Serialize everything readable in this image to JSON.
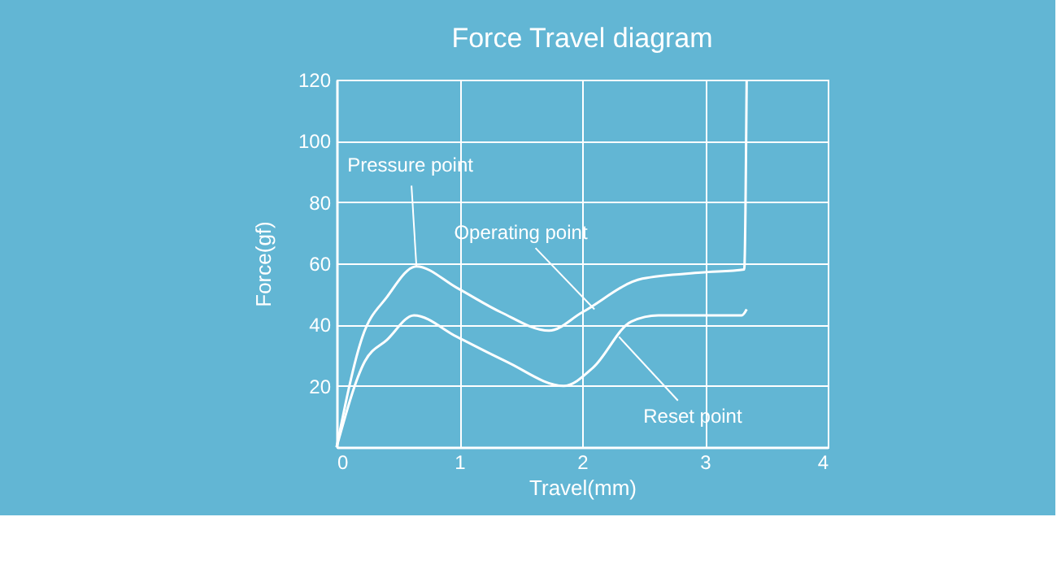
{
  "chart_data": {
    "type": "line",
    "title": "Force Travel diagram",
    "xlabel": "Travel(mm)",
    "ylabel": "Force(gf)",
    "xlim": [
      0,
      4
    ],
    "xticks": [
      0,
      1,
      2,
      3,
      4
    ],
    "ylim": [
      0,
      120
    ],
    "yticks": [
      20,
      40,
      60,
      80,
      100,
      120
    ],
    "grid": true,
    "line_style": "solid",
    "marker": "none",
    "series": [
      {
        "color": "#ffffff",
        "x": [
          0,
          0.21,
          0.41,
          0.65,
          0.98,
          1.34,
          1.73,
          2.0,
          2.49,
          2.97,
          3.32,
          3.34
        ],
        "values": [
          0,
          36,
          49,
          59,
          52,
          44,
          38,
          44,
          55,
          57,
          58,
          120
        ]
      },
      {
        "color": "#ffffff",
        "x": [
          0,
          0.23,
          0.41,
          0.63,
          0.98,
          1.38,
          1.85,
          2.09,
          2.4,
          2.62,
          2.97,
          3.3,
          3.34
        ],
        "values": [
          0,
          28,
          35,
          43,
          36,
          28,
          20,
          26,
          41,
          43,
          43,
          43,
          45
        ]
      }
    ],
    "annotations": [
      {
        "text": "Pressure point",
        "x": 0.65,
        "y": 59
      },
      {
        "text": "Operating point",
        "x": 2.1,
        "y": 45
      },
      {
        "text": "Reset point",
        "x": 2.3,
        "y": 36
      }
    ]
  }
}
